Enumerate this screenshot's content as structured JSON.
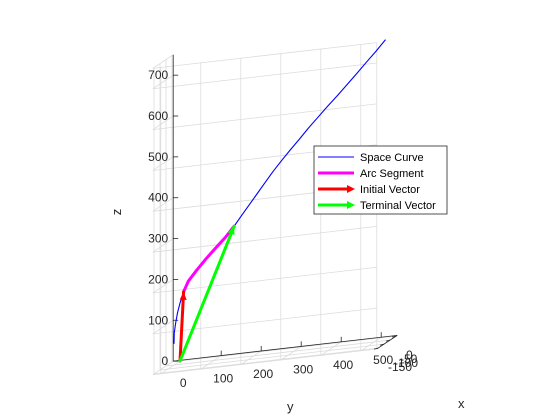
{
  "chart_data": {
    "type": "line",
    "view": "3d",
    "title": "",
    "xlabel": "x",
    "ylabel": "y",
    "zlabel": "z",
    "xlim": [
      -160,
      10
    ],
    "ylim": [
      -20,
      540
    ],
    "zlim": [
      0,
      750
    ],
    "grid": true,
    "legend_position": "right",
    "x_ticks": [
      {
        "value": 0,
        "label": "0"
      },
      {
        "value": -50,
        "label": "-50"
      },
      {
        "value": -100,
        "label": "-100"
      },
      {
        "value": -150,
        "label": "-150"
      }
    ],
    "y_ticks": [
      {
        "value": 0,
        "label": "0"
      },
      {
        "value": 100,
        "label": "100"
      },
      {
        "value": 200,
        "label": "200"
      },
      {
        "value": 300,
        "label": "300"
      },
      {
        "value": 400,
        "label": "400"
      },
      {
        "value": 500,
        "label": "500"
      }
    ],
    "z_ticks": [
      {
        "value": 0,
        "label": "0"
      },
      {
        "value": 100,
        "label": "100"
      },
      {
        "value": 200,
        "label": "200"
      },
      {
        "value": 300,
        "label": "300"
      },
      {
        "value": 400,
        "label": "400"
      },
      {
        "value": 500,
        "label": "500"
      },
      {
        "value": 600,
        "label": "600"
      },
      {
        "value": 700,
        "label": "700"
      }
    ],
    "series": [
      {
        "name": "Space Curve",
        "color": "#0000ff",
        "kind": "curve",
        "points": [
          {
            "x": -20,
            "y": -9,
            "z": 48
          },
          {
            "x": -18,
            "y": -9,
            "z": 73
          },
          {
            "x": -16,
            "y": -6,
            "z": 97
          },
          {
            "x": -14,
            "y": -2,
            "z": 121
          },
          {
            "x": -12,
            "y": 4,
            "z": 145
          },
          {
            "x": -10,
            "y": 12,
            "z": 170
          },
          {
            "x": -8,
            "y": 23,
            "z": 194
          },
          {
            "x": -6,
            "y": 43,
            "z": 218
          },
          {
            "x": -5,
            "y": 65,
            "z": 242
          },
          {
            "x": -4,
            "y": 90,
            "z": 267
          },
          {
            "x": -3,
            "y": 115,
            "z": 291
          },
          {
            "x": -2,
            "y": 136,
            "z": 315
          },
          {
            "x": -1,
            "y": 155,
            "z": 340
          },
          {
            "x": 0,
            "y": 174,
            "z": 364
          },
          {
            "x": 0,
            "y": 193,
            "z": 388
          },
          {
            "x": 0,
            "y": 212,
            "z": 412
          },
          {
            "x": 0,
            "y": 232,
            "z": 437
          },
          {
            "x": 0,
            "y": 253,
            "z": 461
          },
          {
            "x": 0,
            "y": 275,
            "z": 485
          },
          {
            "x": 0,
            "y": 298,
            "z": 509
          },
          {
            "x": 0,
            "y": 321,
            "z": 534
          },
          {
            "x": 0,
            "y": 345,
            "z": 558
          },
          {
            "x": 0,
            "y": 369,
            "z": 582
          },
          {
            "x": 0,
            "y": 394,
            "z": 606
          },
          {
            "x": 0,
            "y": 419,
            "z": 631
          },
          {
            "x": 0,
            "y": 443,
            "z": 655
          },
          {
            "x": 0,
            "y": 466,
            "z": 679
          },
          {
            "x": 0,
            "y": 490,
            "z": 703
          },
          {
            "x": 0,
            "y": 513,
            "z": 728
          }
        ]
      },
      {
        "name": "Arc Segment",
        "color": "#ff00ff",
        "kind": "curve",
        "points": [
          {
            "x": -10,
            "y": 12,
            "z": 170
          },
          {
            "x": -8,
            "y": 23,
            "z": 194
          },
          {
            "x": -6,
            "y": 43,
            "z": 218
          },
          {
            "x": -5,
            "y": 65,
            "z": 242
          },
          {
            "x": -4,
            "y": 90,
            "z": 267
          },
          {
            "x": -3,
            "y": 115,
            "z": 291
          },
          {
            "x": -2,
            "y": 136,
            "z": 315
          }
        ]
      },
      {
        "name": "Initial Vector",
        "color": "#ff0000",
        "kind": "vector",
        "from": {
          "x": 0,
          "y": 0,
          "z": 0
        },
        "to": {
          "x": -10,
          "y": 12,
          "z": 170
        }
      },
      {
        "name": "Terminal Vector",
        "color": "#00ff00",
        "kind": "vector",
        "from": {
          "x": 0,
          "y": 0,
          "z": 0
        },
        "to": {
          "x": -2,
          "y": 136,
          "z": 315
        }
      }
    ]
  }
}
